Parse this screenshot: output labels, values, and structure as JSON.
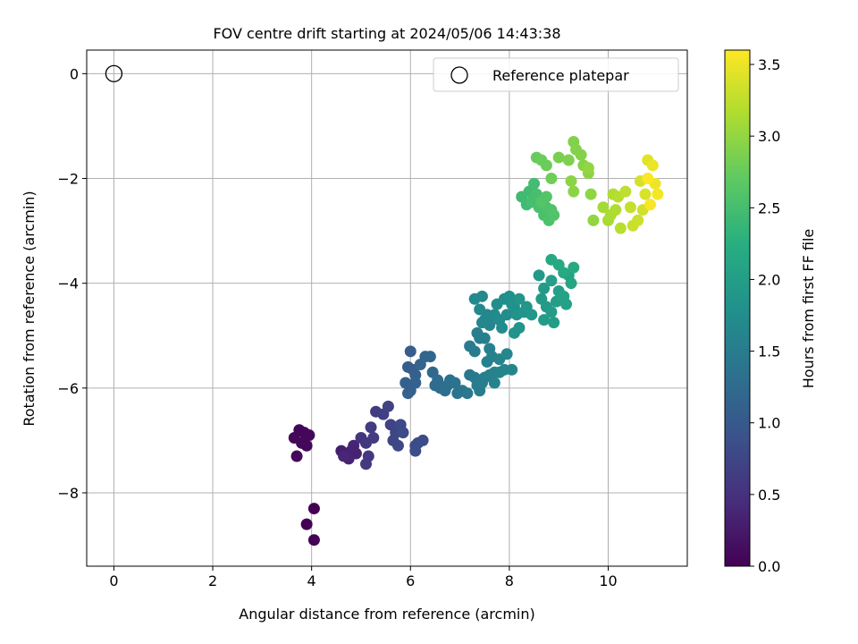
{
  "chart_data": {
    "type": "scatter",
    "title": "FOV centre drift starting at 2024/05/06 14:43:38",
    "xlabel": "Angular distance from reference (arcmin)",
    "ylabel": "Rotation from reference (arcmin)",
    "xlim": [
      -0.55,
      11.6
    ],
    "ylim": [
      -9.4,
      0.45
    ],
    "xticks": [
      0,
      2,
      4,
      6,
      8,
      10
    ],
    "yticks": [
      0,
      -2,
      -4,
      -6,
      -8
    ],
    "grid": true,
    "legend": {
      "position": "top-right",
      "entries": [
        "Reference platepar"
      ]
    },
    "reference": {
      "x": 0,
      "y": 0
    },
    "colorbar": {
      "label": "Hours from first FF file",
      "range": [
        0.0,
        3.6
      ],
      "ticks": [
        "0.0",
        "0.5",
        "1.0",
        "1.5",
        "2.0",
        "2.5",
        "3.0",
        "3.5"
      ],
      "colormap": "viridis"
    },
    "points": [
      [
        4.05,
        -8.3,
        0.0
      ],
      [
        3.9,
        -8.6,
        0.0
      ],
      [
        4.05,
        -8.9,
        0.02
      ],
      [
        3.85,
        -6.85,
        0.05
      ],
      [
        3.75,
        -6.8,
        0.05
      ],
      [
        3.95,
        -6.9,
        0.06
      ],
      [
        3.65,
        -6.95,
        0.06
      ],
      [
        3.8,
        -7.05,
        0.07
      ],
      [
        3.9,
        -7.1,
        0.07
      ],
      [
        3.7,
        -7.3,
        0.08
      ],
      [
        4.6,
        -7.2,
        0.3
      ],
      [
        4.7,
        -7.3,
        0.32
      ],
      [
        4.8,
        -7.2,
        0.34
      ],
      [
        4.9,
        -7.25,
        0.35
      ],
      [
        4.75,
        -7.35,
        0.36
      ],
      [
        4.85,
        -7.1,
        0.37
      ],
      [
        4.65,
        -7.3,
        0.38
      ],
      [
        5.0,
        -6.95,
        0.55
      ],
      [
        5.1,
        -7.05,
        0.57
      ],
      [
        5.15,
        -7.3,
        0.58
      ],
      [
        5.1,
        -7.45,
        0.6
      ],
      [
        5.25,
        -6.95,
        0.62
      ],
      [
        5.2,
        -6.75,
        0.63
      ],
      [
        5.3,
        -6.45,
        0.65
      ],
      [
        5.45,
        -6.5,
        0.67
      ],
      [
        5.55,
        -6.35,
        0.7
      ],
      [
        5.6,
        -6.7,
        0.72
      ],
      [
        5.7,
        -6.85,
        0.74
      ],
      [
        5.65,
        -7.0,
        0.76
      ],
      [
        5.75,
        -7.1,
        0.78
      ],
      [
        5.8,
        -6.7,
        0.8
      ],
      [
        5.85,
        -6.85,
        0.81
      ],
      [
        6.1,
        -7.1,
        0.82
      ],
      [
        6.15,
        -7.05,
        0.83
      ],
      [
        6.25,
        -7.0,
        0.84
      ],
      [
        6.1,
        -7.2,
        0.85
      ],
      [
        6.0,
        -5.3,
        1.05
      ],
      [
        5.95,
        -5.6,
        1.05
      ],
      [
        6.05,
        -5.65,
        1.06
      ],
      [
        6.1,
        -5.75,
        1.08
      ],
      [
        5.9,
        -5.9,
        1.1
      ],
      [
        6.0,
        -6.05,
        1.1
      ],
      [
        5.95,
        -6.1,
        1.12
      ],
      [
        6.1,
        -5.9,
        1.14
      ],
      [
        6.2,
        -5.55,
        1.15
      ],
      [
        6.3,
        -5.4,
        1.17
      ],
      [
        6.4,
        -5.4,
        1.2
      ],
      [
        6.45,
        -5.7,
        1.22
      ],
      [
        6.5,
        -5.95,
        1.24
      ],
      [
        6.55,
        -5.85,
        1.26
      ],
      [
        6.6,
        -6.0,
        1.28
      ],
      [
        6.7,
        -6.05,
        1.3
      ],
      [
        6.75,
        -5.95,
        1.32
      ],
      [
        6.8,
        -5.85,
        1.34
      ],
      [
        6.9,
        -5.9,
        1.36
      ],
      [
        6.95,
        -6.1,
        1.38
      ],
      [
        7.05,
        -6.05,
        1.4
      ],
      [
        7.15,
        -6.1,
        1.42
      ],
      [
        7.2,
        -5.75,
        1.44
      ],
      [
        7.3,
        -5.8,
        1.46
      ],
      [
        7.35,
        -5.95,
        1.48
      ],
      [
        7.4,
        -6.05,
        1.5
      ],
      [
        7.45,
        -5.9,
        1.52
      ],
      [
        7.5,
        -5.8,
        1.54
      ],
      [
        7.6,
        -5.75,
        1.56
      ],
      [
        7.7,
        -5.7,
        1.58
      ],
      [
        7.2,
        -5.2,
        1.48
      ],
      [
        7.3,
        -5.3,
        1.5
      ],
      [
        7.35,
        -4.95,
        1.52
      ],
      [
        7.4,
        -5.05,
        1.53
      ],
      [
        7.5,
        -5.05,
        1.54
      ],
      [
        7.6,
        -5.25,
        1.55
      ],
      [
        7.55,
        -5.5,
        1.56
      ],
      [
        7.65,
        -5.4,
        1.57
      ],
      [
        7.8,
        -5.45,
        1.58
      ],
      [
        7.7,
        -5.9,
        1.6
      ],
      [
        7.8,
        -5.7,
        1.6
      ],
      [
        7.9,
        -5.65,
        1.62
      ],
      [
        8.05,
        -5.65,
        1.63
      ],
      [
        7.95,
        -5.35,
        1.64
      ],
      [
        7.5,
        -4.7,
        1.62
      ],
      [
        7.6,
        -4.8,
        1.63
      ],
      [
        7.65,
        -4.65,
        1.64
      ],
      [
        7.55,
        -4.6,
        1.65
      ],
      [
        7.45,
        -4.75,
        1.66
      ],
      [
        7.4,
        -4.5,
        1.67
      ],
      [
        7.3,
        -4.3,
        1.68
      ],
      [
        7.45,
        -4.25,
        1.69
      ],
      [
        7.7,
        -4.6,
        1.7
      ],
      [
        7.8,
        -4.7,
        1.71
      ],
      [
        7.85,
        -4.85,
        1.72
      ],
      [
        7.95,
        -4.6,
        1.73
      ],
      [
        7.75,
        -4.4,
        1.74
      ],
      [
        7.9,
        -4.3,
        1.76
      ],
      [
        8.0,
        -4.25,
        1.78
      ],
      [
        8.05,
        -4.4,
        1.8
      ],
      [
        8.1,
        -4.45,
        1.82
      ],
      [
        8.15,
        -4.6,
        1.83
      ],
      [
        8.2,
        -4.85,
        1.84
      ],
      [
        8.1,
        -4.95,
        1.85
      ],
      [
        8.3,
        -4.55,
        1.86
      ],
      [
        8.35,
        -4.45,
        1.87
      ],
      [
        8.2,
        -4.3,
        1.88
      ],
      [
        8.45,
        -4.6,
        1.89
      ],
      [
        8.6,
        -3.85,
        1.92
      ],
      [
        8.7,
        -4.1,
        1.93
      ],
      [
        8.65,
        -4.3,
        1.94
      ],
      [
        8.75,
        -4.45,
        1.95
      ],
      [
        8.7,
        -4.7,
        1.96
      ],
      [
        8.85,
        -4.55,
        1.97
      ],
      [
        8.9,
        -4.75,
        1.98
      ],
      [
        8.95,
        -4.35,
        2.0
      ],
      [
        9.0,
        -4.15,
        2.02
      ],
      [
        8.85,
        -3.95,
        2.03
      ],
      [
        9.1,
        -4.25,
        2.05
      ],
      [
        9.15,
        -4.4,
        2.06
      ],
      [
        9.2,
        -3.85,
        2.08
      ],
      [
        9.25,
        -4.0,
        2.09
      ],
      [
        8.85,
        -3.55,
        2.15
      ],
      [
        9.0,
        -3.65,
        2.16
      ],
      [
        9.1,
        -3.8,
        2.17
      ],
      [
        9.3,
        -3.7,
        2.18
      ],
      [
        8.25,
        -2.35,
        2.45
      ],
      [
        8.35,
        -2.5,
        2.46
      ],
      [
        8.4,
        -2.25,
        2.47
      ],
      [
        8.5,
        -2.1,
        2.48
      ],
      [
        8.45,
        -2.45,
        2.5
      ],
      [
        8.55,
        -2.3,
        2.52
      ],
      [
        8.6,
        -2.55,
        2.53
      ],
      [
        8.7,
        -2.7,
        2.54
      ],
      [
        8.75,
        -2.55,
        2.56
      ],
      [
        8.8,
        -2.8,
        2.57
      ],
      [
        8.85,
        -2.6,
        2.58
      ],
      [
        8.9,
        -2.7,
        2.6
      ],
      [
        8.65,
        -2.45,
        2.61
      ],
      [
        8.75,
        -2.35,
        2.62
      ],
      [
        8.55,
        -1.6,
        2.75
      ],
      [
        8.65,
        -1.65,
        2.76
      ],
      [
        8.75,
        -1.75,
        2.78
      ],
      [
        8.85,
        -2.0,
        2.8
      ],
      [
        9.0,
        -1.6,
        2.85
      ],
      [
        9.2,
        -1.65,
        2.88
      ],
      [
        9.3,
        -1.3,
        2.9
      ],
      [
        9.35,
        -1.45,
        2.91
      ],
      [
        9.45,
        -1.55,
        2.92
      ],
      [
        9.5,
        -1.75,
        2.93
      ],
      [
        9.25,
        -2.05,
        2.95
      ],
      [
        9.3,
        -2.25,
        2.96
      ],
      [
        9.6,
        -1.9,
        2.97
      ],
      [
        9.65,
        -2.3,
        2.98
      ],
      [
        9.7,
        -2.8,
        2.99
      ],
      [
        9.6,
        -1.8,
        3.0
      ],
      [
        9.9,
        -2.55,
        3.1
      ],
      [
        10.0,
        -2.8,
        3.12
      ],
      [
        10.05,
        -2.7,
        3.14
      ],
      [
        10.15,
        -2.6,
        3.16
      ],
      [
        10.1,
        -2.3,
        3.18
      ],
      [
        10.2,
        -2.35,
        3.2
      ],
      [
        10.25,
        -2.95,
        3.22
      ],
      [
        10.35,
        -2.25,
        3.25
      ],
      [
        10.45,
        -2.55,
        3.28
      ],
      [
        10.5,
        -2.9,
        3.3
      ],
      [
        10.6,
        -2.8,
        3.32
      ],
      [
        10.7,
        -2.6,
        3.35
      ],
      [
        10.65,
        -2.05,
        3.37
      ],
      [
        10.75,
        -2.3,
        3.4
      ],
      [
        10.8,
        -1.65,
        3.45
      ],
      [
        10.9,
        -1.75,
        3.5
      ],
      [
        10.95,
        -2.1,
        3.52
      ],
      [
        11.0,
        -2.3,
        3.55
      ],
      [
        10.85,
        -2.5,
        3.57
      ],
      [
        10.8,
        -2.0,
        3.59
      ]
    ]
  }
}
